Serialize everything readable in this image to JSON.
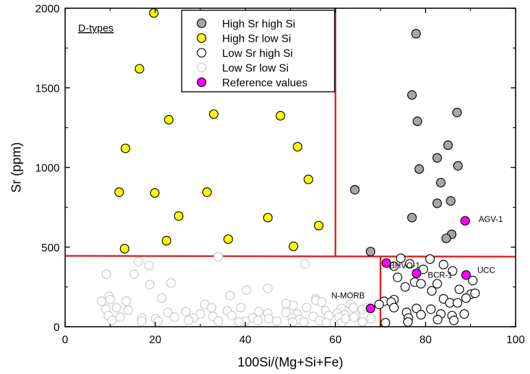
{
  "chart_data": {
    "type": "scatter",
    "panel_label": "D-types",
    "xlabel": "100Si/(Mg+Si+Fe)",
    "ylabel": "Sr (ppm)",
    "xlim": [
      0,
      100
    ],
    "ylim": [
      0,
      2000
    ],
    "xticks": [
      0,
      20,
      40,
      60,
      80,
      100
    ],
    "yticks": [
      0,
      500,
      1000,
      1500,
      2000
    ],
    "legend_position": "top-center",
    "thresholds": {
      "si_high_sr": 60,
      "si_low_sr": 70,
      "sr_line": [
        {
          "x": 0,
          "y": 445
        },
        {
          "x": 100,
          "y": 440
        }
      ]
    },
    "line_color": "#e41a1c",
    "series": [
      {
        "name": "High Sr high Si",
        "fill": "#a6a6a6",
        "stroke": "#000000",
        "points": [
          [
            77.9,
            1840
          ],
          [
            77.0,
            1455
          ],
          [
            87.0,
            1345
          ],
          [
            78.2,
            1290
          ],
          [
            85.0,
            1140
          ],
          [
            82.6,
            1060
          ],
          [
            87.2,
            1010
          ],
          [
            78.6,
            990
          ],
          [
            83.4,
            905
          ],
          [
            64.3,
            860
          ],
          [
            85.6,
            790
          ],
          [
            82.6,
            775
          ],
          [
            77.0,
            685
          ],
          [
            85.8,
            580
          ],
          [
            84.6,
            555
          ],
          [
            67.8,
            472
          ]
        ]
      },
      {
        "name": "High Sr low Si",
        "fill": "#ffff00",
        "stroke": "#000000",
        "points": [
          [
            19.7,
            1970
          ],
          [
            16.5,
            1620
          ],
          [
            13.4,
            1120
          ],
          [
            23.0,
            1300
          ],
          [
            33.0,
            1335
          ],
          [
            47.8,
            1325
          ],
          [
            51.6,
            1130
          ],
          [
            54.0,
            925
          ],
          [
            12.0,
            845
          ],
          [
            19.9,
            840
          ],
          [
            31.5,
            845
          ],
          [
            25.2,
            695
          ],
          [
            45.0,
            685
          ],
          [
            56.3,
            635
          ],
          [
            22.5,
            540
          ],
          [
            36.2,
            550
          ],
          [
            50.7,
            505
          ],
          [
            13.2,
            490
          ]
        ]
      },
      {
        "name": "Low Sr high Si",
        "fill": "#ffffff",
        "stroke": "#000000",
        "points": [
          [
            74.5,
            430
          ],
          [
            81.0,
            425
          ],
          [
            73.0,
            380
          ],
          [
            76.5,
            395
          ],
          [
            84.0,
            390
          ],
          [
            79.5,
            360
          ],
          [
            86.0,
            350
          ],
          [
            73.8,
            310
          ],
          [
            77.6,
            280
          ],
          [
            79.0,
            270
          ],
          [
            82.6,
            270
          ],
          [
            75.5,
            250
          ],
          [
            81.4,
            225
          ],
          [
            87.5,
            235
          ],
          [
            90.5,
            290
          ],
          [
            90.1,
            205
          ],
          [
            91.0,
            210
          ],
          [
            84.0,
            175
          ],
          [
            73.0,
            170
          ],
          [
            70.8,
            160
          ],
          [
            72.4,
            155
          ],
          [
            85.4,
            150
          ],
          [
            89.0,
            180
          ],
          [
            87.1,
            150
          ],
          [
            69.7,
            140
          ],
          [
            73.0,
            120
          ],
          [
            78.0,
            115
          ],
          [
            81.2,
            110
          ],
          [
            83.4,
            80
          ],
          [
            75.8,
            90
          ],
          [
            79.0,
            75
          ],
          [
            85.9,
            70
          ],
          [
            88.6,
            80
          ],
          [
            76.2,
            55
          ],
          [
            82.7,
            45
          ],
          [
            86.3,
            40
          ],
          [
            71.1,
            25
          ],
          [
            76.1,
            30
          ]
        ]
      },
      {
        "name": "Low Sr low Si",
        "fill": "#ffffff",
        "stroke": "#c8c8c8",
        "points": [
          [
            16.3,
            410
          ],
          [
            18.6,
            385
          ],
          [
            9.2,
            330
          ],
          [
            15.3,
            330
          ],
          [
            34.0,
            440
          ],
          [
            53.2,
            395
          ],
          [
            23.5,
            275
          ],
          [
            18.8,
            265
          ],
          [
            45.0,
            240
          ],
          [
            40.3,
            230
          ],
          [
            21.4,
            180
          ],
          [
            36.6,
            195
          ],
          [
            55.6,
            175
          ],
          [
            9.8,
            190
          ],
          [
            8.1,
            160
          ],
          [
            10.0,
            170
          ],
          [
            13.6,
            160
          ],
          [
            31.0,
            140
          ],
          [
            39.0,
            120
          ],
          [
            32.5,
            120
          ],
          [
            55.7,
            165
          ],
          [
            57.0,
            155
          ],
          [
            50.6,
            135
          ],
          [
            53.6,
            120
          ],
          [
            49.0,
            145
          ],
          [
            63.3,
            140
          ],
          [
            61.3,
            115
          ],
          [
            64.0,
            120
          ],
          [
            66.0,
            110
          ],
          [
            67.1,
            120
          ],
          [
            11.4,
            120
          ],
          [
            9.0,
            110
          ],
          [
            14.0,
            105
          ],
          [
            22.8,
            90
          ],
          [
            26.8,
            95
          ],
          [
            30.0,
            80
          ],
          [
            36.0,
            100
          ],
          [
            43.0,
            95
          ],
          [
            45.0,
            85
          ],
          [
            49.0,
            90
          ],
          [
            51.5,
            80
          ],
          [
            57.8,
            100
          ],
          [
            60.4,
            85
          ],
          [
            62.1,
            75
          ],
          [
            64.5,
            70
          ],
          [
            9.6,
            70
          ],
          [
            12.2,
            60
          ],
          [
            17.0,
            55
          ],
          [
            20.1,
            50
          ],
          [
            24.3,
            60
          ],
          [
            28.5,
            55
          ],
          [
            32.8,
            65
          ],
          [
            37.0,
            70
          ],
          [
            41.6,
            55
          ],
          [
            45.2,
            50
          ],
          [
            50.4,
            55
          ],
          [
            52.0,
            45
          ],
          [
            55.1,
            65
          ],
          [
            58.5,
            70
          ],
          [
            60.8,
            60
          ],
          [
            64.1,
            60
          ],
          [
            67.9,
            50
          ],
          [
            10.4,
            40
          ],
          [
            17.0,
            35
          ],
          [
            20.6,
            35
          ],
          [
            27.4,
            40
          ],
          [
            34.0,
            35
          ],
          [
            40.0,
            35
          ],
          [
            42.8,
            40
          ],
          [
            47.0,
            35
          ],
          [
            53.0,
            30
          ],
          [
            56.5,
            40
          ],
          [
            61.4,
            25
          ],
          [
            38.6,
            30
          ],
          [
            50.5,
            30
          ],
          [
            66.0,
            30
          ],
          [
            62.2,
            50
          ],
          [
            58.0,
            25
          ]
        ]
      },
      {
        "name": "Reference values",
        "fill": "#ff00ff",
        "stroke": "#000000",
        "points": [
          [
            88.8,
            665
          ],
          [
            71.3,
            400
          ],
          [
            78.0,
            335
          ],
          [
            89.0,
            325
          ],
          [
            67.8,
            115
          ]
        ]
      }
    ],
    "annotations": [
      {
        "text": "AGV-1",
        "x": 91.8,
        "y": 675,
        "anchor": "start"
      },
      {
        "text": "BHVO-1",
        "x": 72.0,
        "y": 385,
        "anchor": "start"
      },
      {
        "text": "BCR-1",
        "x": 80.5,
        "y": 325,
        "anchor": "start"
      },
      {
        "text": "UCC",
        "x": 91.5,
        "y": 355,
        "anchor": "start"
      },
      {
        "text": "N-MORB",
        "x": 66.5,
        "y": 195,
        "anchor": "end"
      }
    ]
  }
}
